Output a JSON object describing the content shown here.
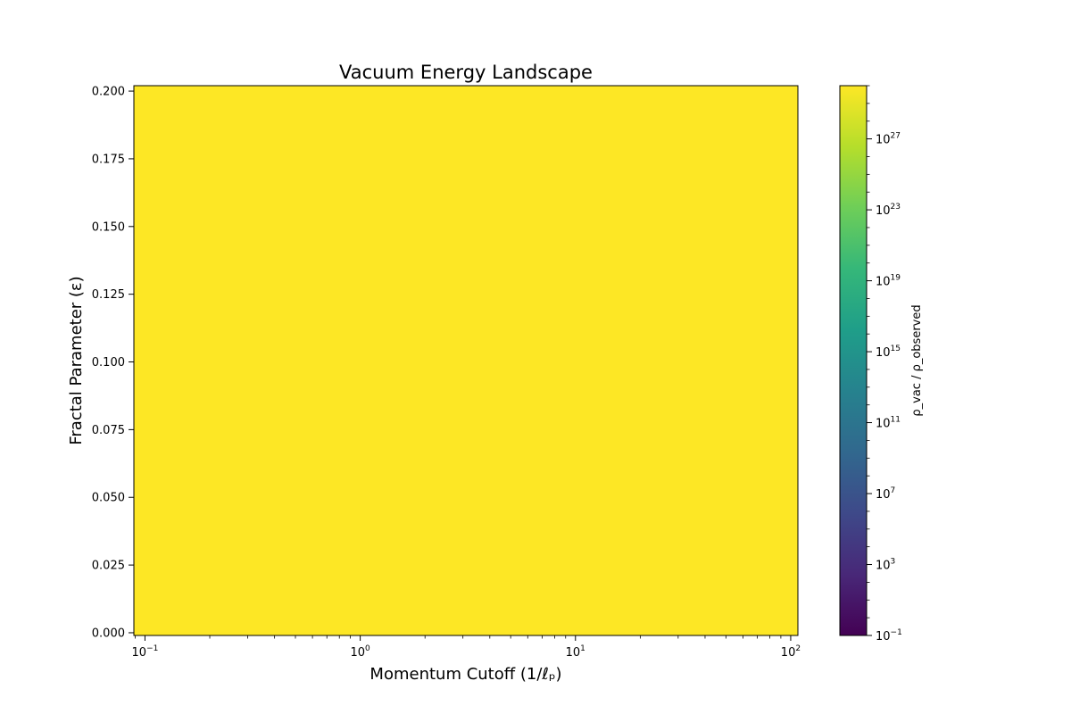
{
  "chart_data": {
    "type": "heatmap",
    "title": "Vacuum Energy Landscape",
    "xlabel": "Momentum Cutoff (1/ℓₚ)",
    "ylabel": "Fractal Parameter (ε)",
    "xscale": "log",
    "xlim": [
      0.0888,
      108
    ],
    "ylim": [
      -0.001,
      0.202
    ],
    "x_major_ticks": [
      {
        "value": 0.1,
        "base": "10",
        "exp": "−1"
      },
      {
        "value": 1,
        "base": "10",
        "exp": "0"
      },
      {
        "value": 10,
        "base": "10",
        "exp": "1"
      },
      {
        "value": 100,
        "base": "10",
        "exp": "2"
      }
    ],
    "y_ticks": [
      {
        "value": 0.0,
        "label": "0.000"
      },
      {
        "value": 0.025,
        "label": "0.025"
      },
      {
        "value": 0.05,
        "label": "0.050"
      },
      {
        "value": 0.075,
        "label": "0.075"
      },
      {
        "value": 0.1,
        "label": "0.100"
      },
      {
        "value": 0.125,
        "label": "0.125"
      },
      {
        "value": 0.15,
        "label": "0.150"
      },
      {
        "value": 0.175,
        "label": "0.175"
      },
      {
        "value": 0.2,
        "label": "0.200"
      }
    ],
    "z_field": {
      "description": "uniform",
      "value_log10_min": 30,
      "color": "#fde725"
    },
    "colorbar": {
      "label": "ρ_vac / ρ_observed",
      "scale": "log",
      "log10_range": [
        -1,
        30
      ],
      "colormap": "viridis",
      "ticks": [
        {
          "exp10": -1,
          "base": "10",
          "exp": "−1"
        },
        {
          "exp10": 3,
          "base": "10",
          "exp": "3"
        },
        {
          "exp10": 7,
          "base": "10",
          "exp": "7"
        },
        {
          "exp10": 11,
          "base": "10",
          "exp": "11"
        },
        {
          "exp10": 15,
          "base": "10",
          "exp": "15"
        },
        {
          "exp10": 19,
          "base": "10",
          "exp": "19"
        },
        {
          "exp10": 23,
          "base": "10",
          "exp": "23"
        },
        {
          "exp10": 27,
          "base": "10",
          "exp": "27"
        }
      ]
    }
  },
  "colors": {
    "field": "#fde725",
    "viridis": [
      "#440154",
      "#482878",
      "#3e4989",
      "#31688e",
      "#26828e",
      "#1f9e89",
      "#35b779",
      "#6ece58",
      "#b5de2b",
      "#fde725"
    ]
  }
}
